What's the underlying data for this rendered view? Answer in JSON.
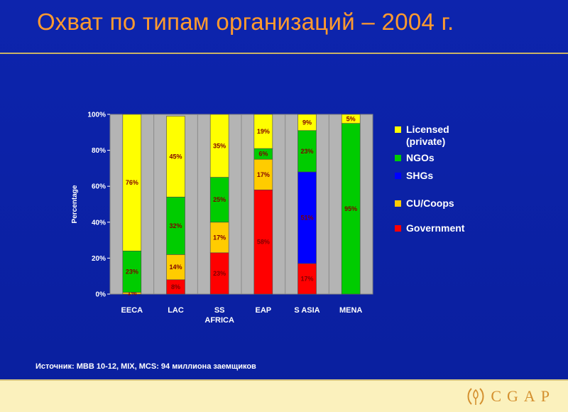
{
  "slide": {
    "title": "Охват по типам организаций – 2004 г.",
    "source": "Источник: MBB 10-12, MIX, MCS: 94 миллиона заемщиков",
    "logo_text": "CGAP"
  },
  "colors": {
    "background": "#0b21a8",
    "title": "#ff9a2e",
    "plot_area": "#b4b4b4"
  },
  "chart_data": {
    "type": "bar",
    "stacked": true,
    "percent_stacked": true,
    "ylabel": "Percentage",
    "ylim": [
      0,
      100
    ],
    "yticks": [
      "0%",
      "20%",
      "40%",
      "60%",
      "80%",
      "100%"
    ],
    "grid": "vertical-separators",
    "legend_position": "right",
    "categories": [
      {
        "lines": [
          "EECA"
        ]
      },
      {
        "lines": [
          "LAC"
        ]
      },
      {
        "lines": [
          "SS",
          "AFRICA"
        ]
      },
      {
        "lines": [
          "EAP"
        ]
      },
      {
        "lines": [
          "S ASIA"
        ]
      },
      {
        "lines": [
          "MENA"
        ]
      }
    ],
    "series": [
      {
        "name": "Government",
        "color": "#ff0000",
        "label_color": "#800000",
        "values": [
          0,
          8,
          23,
          58,
          17,
          0
        ],
        "labels": [
          "",
          "8%",
          "23%",
          "58%",
          "17%",
          ""
        ]
      },
      {
        "name": "CU/Coops",
        "color": "#ffcc00",
        "label_color": "#800000",
        "values": [
          1,
          14,
          17,
          17,
          0,
          0
        ],
        "labels": [
          "1%",
          "14%",
          "17%",
          "17%",
          "",
          ""
        ]
      },
      {
        "name": "SHGs",
        "color": "#0000ff",
        "label_color": "#800000",
        "values": [
          0,
          0,
          0,
          0,
          51,
          0
        ],
        "labels": [
          "",
          "",
          "",
          "",
          "51%",
          ""
        ]
      },
      {
        "name": "NGOs",
        "color": "#00cc00",
        "label_color": "#800000",
        "values": [
          23,
          32,
          25,
          6,
          23,
          95
        ],
        "labels": [
          "23%",
          "32%",
          "25%",
          "6%",
          "23%",
          "95%"
        ]
      },
      {
        "name": "Licensed (private)",
        "color": "#ffff00",
        "label_color": "#800000",
        "values": [
          76,
          45,
          35,
          19,
          9,
          5
        ],
        "labels": [
          "76%",
          "45%",
          "35%",
          "19%",
          "9%",
          "5%"
        ]
      }
    ],
    "legend": [
      {
        "lines": [
          "Licensed",
          "(private)"
        ],
        "color": "#ffff00"
      },
      {
        "lines": [
          "NGOs"
        ],
        "color": "#00cc00"
      },
      {
        "lines": [
          "SHGs"
        ],
        "color": "#0000ff"
      },
      {
        "lines": [
          "CU/Coops"
        ],
        "color": "#ffcc00"
      },
      {
        "lines": [
          "Government"
        ],
        "color": "#ff0000"
      }
    ]
  }
}
